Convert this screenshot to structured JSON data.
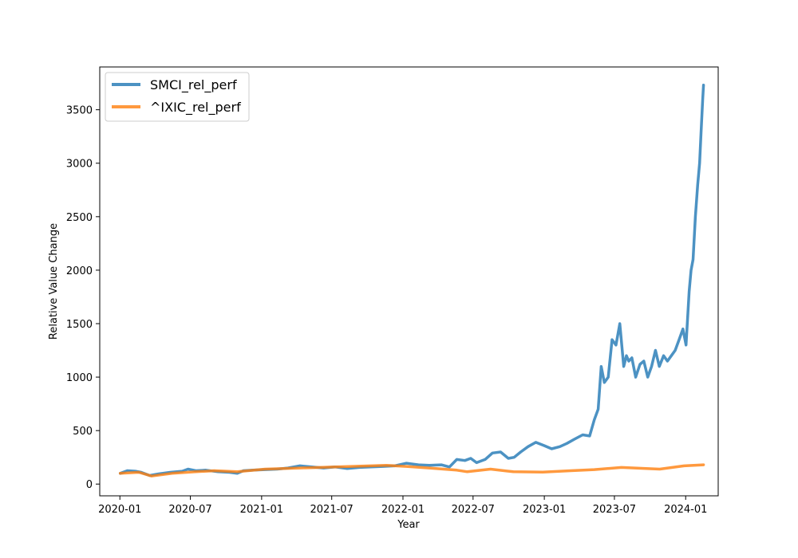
{
  "chart_data": {
    "type": "line",
    "title": "",
    "xlabel": "Year",
    "ylabel": "Relative Value Change",
    "xlim": [
      "2019-11-10",
      "2024-03-25"
    ],
    "ylim": [
      -110,
      3900
    ],
    "x_ticks": [
      "2020-01",
      "2020-07",
      "2021-01",
      "2021-07",
      "2022-01",
      "2022-07",
      "2023-01",
      "2023-07",
      "2024-01"
    ],
    "y_ticks": [
      0,
      500,
      1000,
      1500,
      2000,
      2500,
      3000,
      3500
    ],
    "grid": false,
    "legend": "top-left",
    "series": [
      {
        "name": "SMCI_rel_perf",
        "color": "#1f77b4",
        "x": [
          "2020-01-02",
          "2020-01-20",
          "2020-02-10",
          "2020-02-25",
          "2020-03-18",
          "2020-04-10",
          "2020-05-10",
          "2020-06-10",
          "2020-06-25",
          "2020-07-15",
          "2020-08-10",
          "2020-09-10",
          "2020-10-10",
          "2020-10-30",
          "2020-11-15",
          "2020-12-10",
          "2021-01-10",
          "2021-02-10",
          "2021-03-10",
          "2021-04-10",
          "2021-05-10",
          "2021-06-10",
          "2021-07-10",
          "2021-08-10",
          "2021-09-10",
          "2021-10-10",
          "2021-11-10",
          "2021-12-10",
          "2022-01-10",
          "2022-02-10",
          "2022-03-10",
          "2022-04-10",
          "2022-05-01",
          "2022-05-20",
          "2022-06-10",
          "2022-06-25",
          "2022-07-10",
          "2022-08-01",
          "2022-08-20",
          "2022-09-10",
          "2022-09-30",
          "2022-10-15",
          "2022-11-01",
          "2022-11-20",
          "2022-12-10",
          "2022-12-31",
          "2023-01-20",
          "2023-02-10",
          "2023-02-28",
          "2023-03-20",
          "2023-04-10",
          "2023-04-28",
          "2023-05-10",
          "2023-05-20",
          "2023-05-28",
          "2023-06-05",
          "2023-06-15",
          "2023-06-25",
          "2023-07-05",
          "2023-07-15",
          "2023-07-25",
          "2023-08-01",
          "2023-08-07",
          "2023-08-15",
          "2023-08-25",
          "2023-09-05",
          "2023-09-15",
          "2023-09-25",
          "2023-10-05",
          "2023-10-15",
          "2023-10-25",
          "2023-11-05",
          "2023-11-15",
          "2023-11-25",
          "2023-12-05",
          "2023-12-15",
          "2023-12-25",
          "2024-01-02",
          "2024-01-10",
          "2024-01-15",
          "2024-01-20",
          "2024-01-26",
          "2024-02-01",
          "2024-02-06",
          "2024-02-10",
          "2024-02-14",
          "2024-02-16"
        ],
        "values": [
          100,
          125,
          120,
          110,
          80,
          95,
          110,
          120,
          140,
          125,
          130,
          115,
          110,
          100,
          125,
          130,
          135,
          140,
          150,
          170,
          160,
          150,
          160,
          145,
          155,
          160,
          165,
          170,
          195,
          180,
          175,
          180,
          160,
          230,
          220,
          240,
          200,
          230,
          290,
          300,
          240,
          250,
          300,
          350,
          390,
          360,
          330,
          350,
          380,
          420,
          460,
          450,
          600,
          700,
          1100,
          950,
          1000,
          1350,
          1300,
          1500,
          1100,
          1200,
          1150,
          1180,
          1000,
          1120,
          1150,
          1000,
          1100,
          1250,
          1100,
          1200,
          1150,
          1200,
          1250,
          1350,
          1450,
          1300,
          1800,
          2000,
          2100,
          2500,
          2800,
          3000,
          3300,
          3600,
          3730
        ]
      },
      {
        "name": "^IXIC_rel_perf",
        "color": "#ff7f0e",
        "x": [
          "2020-01-02",
          "2020-02-19",
          "2020-03-23",
          "2020-05-15",
          "2020-07-15",
          "2020-09-01",
          "2020-10-30",
          "2021-01-10",
          "2021-04-10",
          "2021-07-10",
          "2021-11-19",
          "2022-01-10",
          "2022-03-10",
          "2022-05-20",
          "2022-06-16",
          "2022-08-15",
          "2022-10-13",
          "2022-12-28",
          "2023-03-10",
          "2023-05-10",
          "2023-07-19",
          "2023-10-26",
          "2023-12-28",
          "2024-02-16"
        ],
        "values": [
          100,
          110,
          75,
          100,
          115,
          125,
          115,
          140,
          150,
          160,
          175,
          165,
          150,
          130,
          115,
          140,
          115,
          112,
          125,
          135,
          155,
          140,
          170,
          180
        ]
      }
    ]
  }
}
